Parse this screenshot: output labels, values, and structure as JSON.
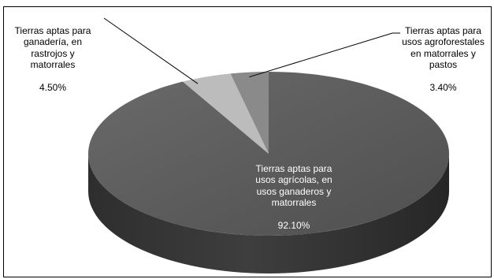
{
  "chart_data": {
    "type": "pie",
    "title": "",
    "slices": [
      {
        "label": "Tierras aptas para\nusos agrícolas, en\nusos ganaderos y\nmatorrales",
        "percent_label": "92.10%",
        "value": 92.1,
        "color": "#5b5b5b"
      },
      {
        "label": "Tierras aptas para\nganadería, en\nrastrojos y\nmatorrales",
        "percent_label": "4.50%",
        "value": 4.5,
        "color": "#bcbcbc"
      },
      {
        "label": "Tierras aptas para\nusos agroforestales\nen matorrales y\npastos",
        "percent_label": "3.40%",
        "value": 3.4,
        "color": "#8a8a8a"
      }
    ]
  }
}
